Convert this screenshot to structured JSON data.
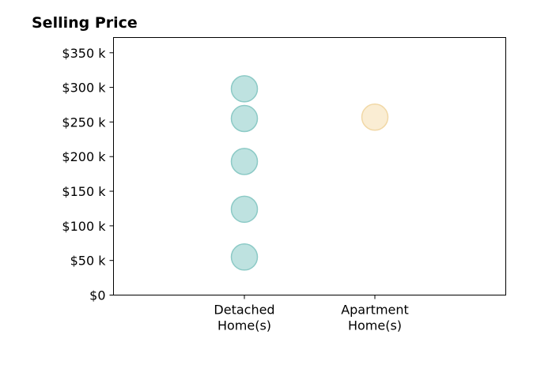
{
  "chart_data": {
    "type": "scatter",
    "title": "Selling Price",
    "xlabel": "",
    "ylabel": "",
    "categories": [
      [
        "Detached",
        "Home(s)"
      ],
      [
        "Apartment",
        "Home(s)"
      ]
    ],
    "ylim": [
      0,
      372
    ],
    "y_ticks": [
      {
        "value": 0,
        "label": "$0"
      },
      {
        "value": 50,
        "label": "$50 k"
      },
      {
        "value": 100,
        "label": "$100 k"
      },
      {
        "value": 150,
        "label": "$150 k"
      },
      {
        "value": 200,
        "label": "$200 k"
      },
      {
        "value": 250,
        "label": "$250 k"
      },
      {
        "value": 300,
        "label": "$300 k"
      },
      {
        "value": 350,
        "label": "$350 k"
      }
    ],
    "grid": false,
    "series": [
      {
        "category_index": 0,
        "color": "#a8d8d5",
        "stroke": "#8ccac6",
        "values": [
          55,
          124,
          193,
          255,
          298
        ]
      },
      {
        "category_index": 1,
        "color": "#f8e7c4",
        "stroke": "#f1d8a6",
        "values": [
          257
        ]
      }
    ]
  }
}
